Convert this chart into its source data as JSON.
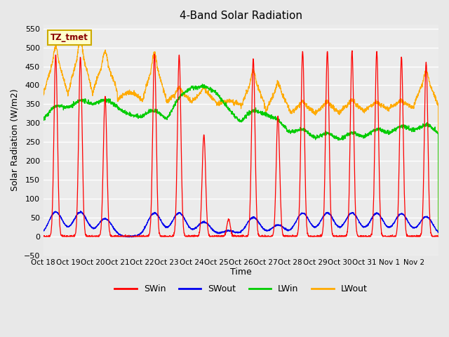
{
  "title": "4-Band Solar Radiation",
  "xlabel": "Time",
  "ylabel": "Solar Radiation (W/m2)",
  "ylim": [
    -50,
    560
  ],
  "yticks": [
    -50,
    0,
    50,
    100,
    150,
    200,
    250,
    300,
    350,
    400,
    450,
    500,
    550
  ],
  "xtick_labels": [
    "Oct 18",
    "Oct 19",
    "Oct 20",
    "Oct 21",
    "Oct 22",
    "Oct 23",
    "Oct 24",
    "Oct 25",
    "Oct 26",
    "Oct 27",
    "Oct 28",
    "Oct 29",
    "Oct 30",
    "Oct 31",
    "Nov 1",
    "Nov 2"
  ],
  "annotation_text": "TZ_tmet",
  "annotation_bg": "#ffffcc",
  "annotation_border": "#ccaa00",
  "annotation_text_color": "#880000",
  "bg_color": "#e8e8e8",
  "plot_bg_color": "#ebebeb",
  "grid_color": "#ffffff",
  "n_days": 16,
  "SWin_color": "#ff0000",
  "SWout_color": "#0000ee",
  "LWin_color": "#00cc00",
  "LWout_color": "#ffaa00",
  "sw_peaks": [
    480,
    475,
    370,
    0,
    483,
    480,
    270,
    45,
    470,
    320,
    490,
    490,
    490,
    490,
    475,
    460
  ],
  "sw_out_peaks": [
    65,
    64,
    47,
    0,
    62,
    62,
    38,
    15,
    50,
    30,
    62,
    62,
    62,
    61,
    60,
    52
  ],
  "lwin_base": [
    302,
    325,
    335,
    335,
    310,
    295,
    380,
    375,
    295,
    310,
    260,
    245,
    240,
    248,
    258,
    265
  ],
  "lwout_night": [
    375,
    375,
    380,
    360,
    355,
    355,
    355,
    350,
    340,
    330,
    325,
    325,
    330,
    335,
    340,
    345
  ],
  "lwout_day_peak": [
    490,
    510,
    480,
    390,
    475,
    390,
    390,
    360,
    430,
    400,
    355,
    355,
    358,
    355,
    358,
    430
  ]
}
